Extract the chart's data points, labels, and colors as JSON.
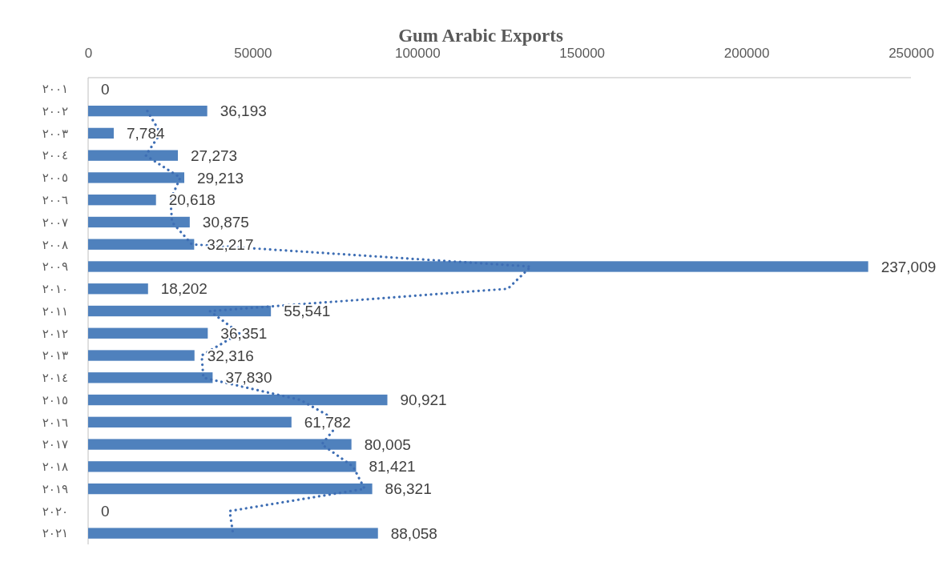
{
  "chart_data": {
    "type": "bar",
    "orientation": "horizontal",
    "title": "Gum Arabic Exports",
    "categories": [
      "٢٠٠١",
      "٢٠٠٢",
      "٢٠٠٣",
      "٢٠٠٤",
      "٢٠٠٥",
      "٢٠٠٦",
      "٢٠٠٧",
      "٢٠٠٨",
      "٢٠٠٩",
      "٢٠١٠",
      "٢٠١١",
      "٢٠١٢",
      "٢٠١٣",
      "٢٠١٤",
      "٢٠١٥",
      "٢٠١٦",
      "٢٠١٧",
      "٢٠١٨",
      "٢٠١٩",
      "٢٠٢٠",
      "٢٠٢١"
    ],
    "series": [
      {
        "color": "#4f81bd",
        "values": [
          0,
          36193,
          7784,
          27273,
          29213,
          20618,
          30875,
          32217,
          237009,
          18202,
          55541,
          36351,
          32316,
          37830,
          90921,
          61782,
          80005,
          81421,
          86321,
          0,
          88058
        ],
        "value_labels": [
          "0",
          "36,193",
          "7,784",
          "27,273",
          "29,213",
          "20,618",
          "30,875",
          "32,217",
          "237,009",
          "18,202",
          "55,541",
          "36,351",
          "32,316",
          "37,830",
          "90,921",
          "61,782",
          "80,005",
          "81,421",
          "86,321",
          "0",
          "88,058"
        ]
      },
      {
        "type": "line",
        "color": "#3e6eb4",
        "line_style": "dotted",
        "marker": "none",
        "values": [
          null,
          18000,
          22000,
          17500,
          28000,
          25000,
          25500,
          31500,
          134500,
          127500,
          37000,
          46000,
          34500,
          35000,
          64500,
          76500,
          71000,
          80500,
          84000,
          43000,
          44000
        ]
      }
    ],
    "xlim": [
      0,
      250000
    ],
    "xticks": [
      0,
      50000,
      100000,
      150000,
      200000,
      250000
    ],
    "grid": false
  }
}
